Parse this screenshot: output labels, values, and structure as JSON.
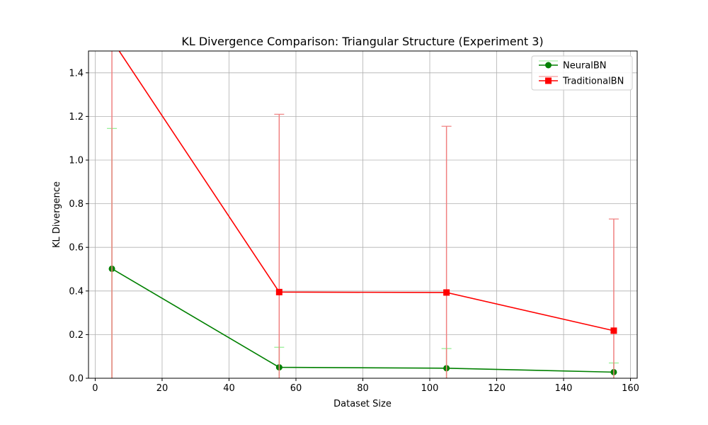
{
  "chart_data": {
    "type": "line",
    "title": "KL Divergence Comparison: Triangular Structure (Experiment 3)",
    "xlabel": "Dataset Size",
    "ylabel": "KL Divergence",
    "xlim": [
      -2,
      162
    ],
    "ylim": [
      0,
      1.5
    ],
    "xticks": [
      0,
      20,
      40,
      60,
      80,
      100,
      120,
      140,
      160
    ],
    "yticks": [
      0.0,
      0.2,
      0.4,
      0.6,
      0.8,
      1.0,
      1.2,
      1.4
    ],
    "grid": true,
    "legend_position": "top-right",
    "x": [
      5,
      55,
      105,
      155
    ],
    "series": [
      {
        "name": "NeuralBN",
        "marker": "circle",
        "color": "#008000",
        "errorbar_color": "#90ee90",
        "values": [
          0.502,
          0.05,
          0.046,
          0.028
        ],
        "err_upper": [
          1.145,
          0.142,
          0.136,
          0.07
        ],
        "err_lower": [
          0,
          0,
          0,
          0
        ]
      },
      {
        "name": "TraditionalBN",
        "marker": "square",
        "color": "#ff0000",
        "errorbar_color": "#f08080",
        "values": [
          1.55,
          0.395,
          0.393,
          0.218
        ],
        "err_upper": [
          1.6,
          1.21,
          1.155,
          0.73
        ],
        "err_lower": [
          0,
          0,
          0,
          0
        ]
      }
    ]
  }
}
